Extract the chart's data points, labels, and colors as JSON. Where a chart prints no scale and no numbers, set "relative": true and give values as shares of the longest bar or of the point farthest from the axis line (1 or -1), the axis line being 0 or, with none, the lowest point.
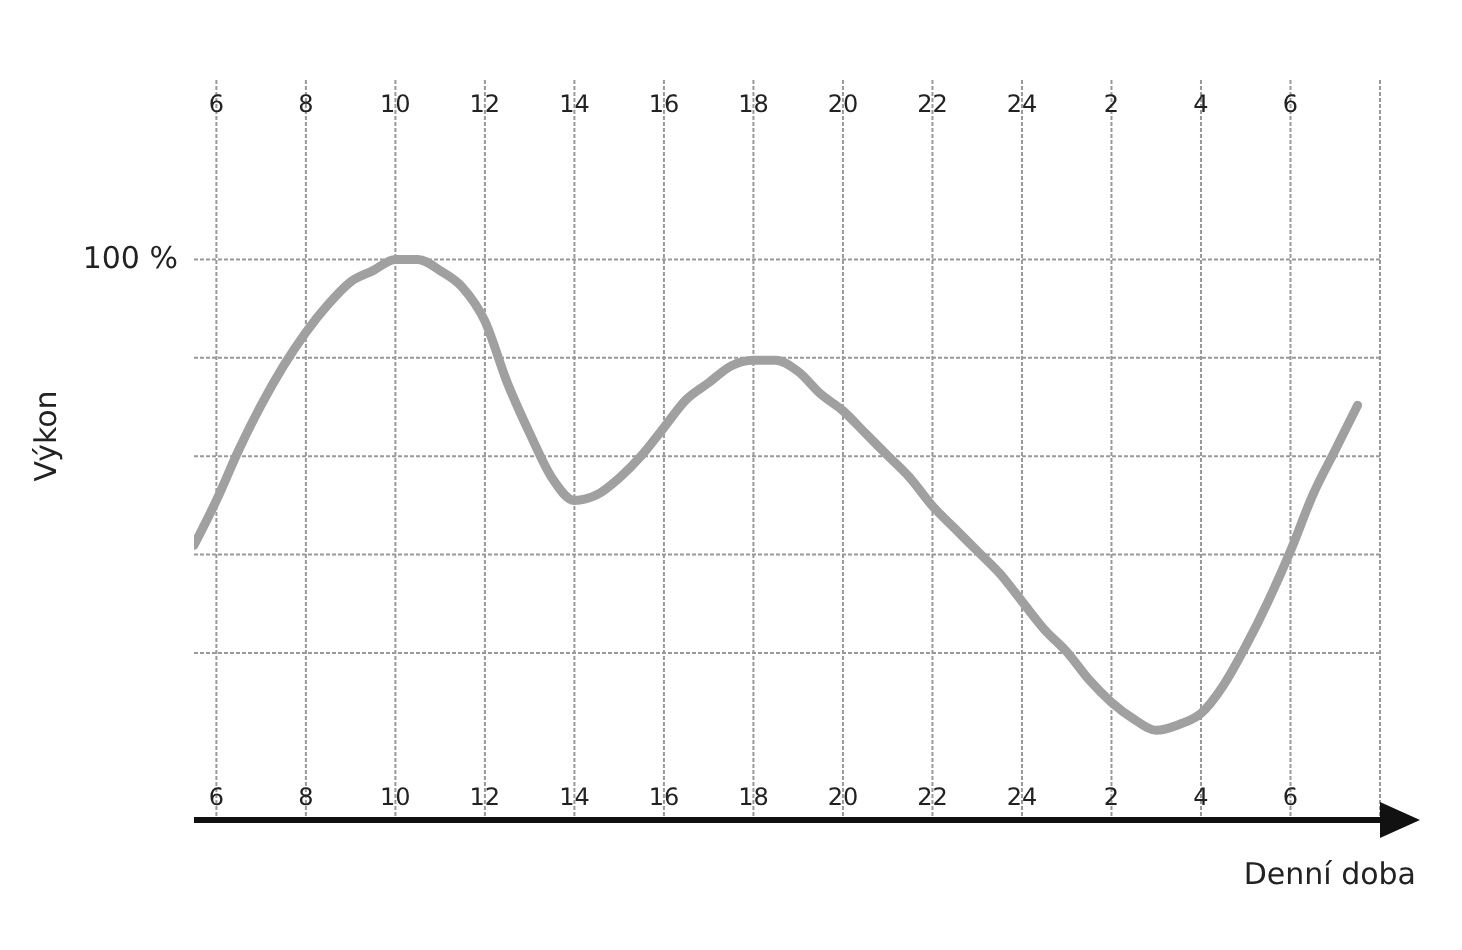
{
  "chart_data": {
    "type": "line",
    "xlabel": "Denní doba",
    "ylabel": "Výkon",
    "relative": true,
    "categories": [
      null,
      "6",
      null,
      null,
      null,
      "8",
      null,
      null,
      null,
      "10",
      null,
      null,
      null,
      "12",
      null,
      null,
      null,
      "14",
      null,
      null,
      null,
      "16",
      null,
      null,
      null,
      "18",
      null,
      null,
      null,
      "20",
      null,
      null,
      null,
      "22",
      null,
      null,
      null,
      "24",
      null,
      null,
      null,
      "2",
      null,
      null,
      null,
      "4",
      null,
      null,
      null,
      "6",
      null,
      null,
      null,
      null
    ],
    "series": [
      {
        "color": "#a0a0a0",
        "values": [
          0.49,
          0.57,
          0.66,
          0.74,
          0.81,
          0.87,
          0.92,
          0.96,
          0.98,
          1,
          1,
          0.98,
          0.95,
          0.89,
          0.78,
          0.69,
          0.61,
          0.57,
          0.58,
          0.61,
          0.65,
          0.7,
          0.75,
          0.78,
          0.81,
          0.82,
          0.82,
          0.8,
          0.76,
          0.73,
          0.69,
          0.65,
          0.61,
          0.56,
          0.52,
          0.48,
          0.44,
          0.39,
          0.34,
          0.3,
          0.25,
          0.21,
          0.18,
          0.16,
          0.17,
          0.19,
          0.24,
          0.31,
          0.39,
          0.48,
          0.58,
          0.66,
          0.74,
          null
        ]
      }
    ],
    "annotations": [
      "100 %"
    ],
    "grid": true,
    "legend": false,
    "marker": "none",
    "line_style": "solid"
  }
}
